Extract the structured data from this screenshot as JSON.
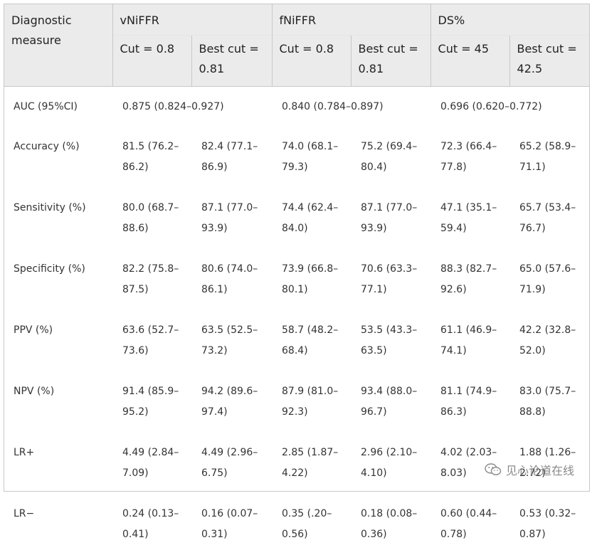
{
  "header": {
    "measure_label_line1": "Diagnostic",
    "measure_label_line2": "measure",
    "groups": [
      {
        "name": "vNiFFR",
        "cut": "Cut = 0.8",
        "best_line1": "Best cut =",
        "best_line2": "0.81"
      },
      {
        "name": "fNiFFR",
        "cut": "Cut = 0.8",
        "best_line1": "Best cut =",
        "best_line2": "0.81"
      },
      {
        "name": "DS%",
        "cut": "Cut = 45",
        "best_line1": "Best cut =",
        "best_line2": "42.5"
      }
    ]
  },
  "auc": {
    "label": "AUC (95%CI)",
    "values": [
      "0.875 (0.824–0.927)",
      "0.840 (0.784–0.897)",
      "0.696 (0.620–0.772)"
    ]
  },
  "rows": [
    {
      "label": "Accuracy (%)",
      "cells": [
        [
          "81.5 (76.2–",
          "86.2)"
        ],
        [
          "82.4 (77.1–",
          "86.9)"
        ],
        [
          "74.0 (68.1–",
          "79.3)"
        ],
        [
          "75.2 (69.4–",
          "80.4)"
        ],
        [
          "72.3 (66.4–",
          "77.8)"
        ],
        [
          "65.2 (58.9–",
          "71.1)"
        ]
      ]
    },
    {
      "label": "Sensitivity (%)",
      "cells": [
        [
          "80.0 (68.7–",
          "88.6)"
        ],
        [
          "87.1 (77.0–",
          "93.9)"
        ],
        [
          "74.4 (62.4–",
          "84.0)"
        ],
        [
          "87.1 (77.0–",
          "93.9)"
        ],
        [
          "47.1 (35.1–",
          "59.4)"
        ],
        [
          "65.7 (53.4–",
          "76.7)"
        ]
      ]
    },
    {
      "label": "Specificity (%)",
      "cells": [
        [
          "82.2 (75.8–",
          "87.5)"
        ],
        [
          "80.6 (74.0–",
          "86.1)"
        ],
        [
          "73.9 (66.8–",
          "80.1)"
        ],
        [
          "70.6 (63.3–",
          "77.1)"
        ],
        [
          "88.3 (82.7–",
          "92.6)"
        ],
        [
          "65.0 (57.6–",
          "71.9)"
        ]
      ]
    },
    {
      "label": "PPV (%)",
      "cells": [
        [
          "63.6 (52.7–",
          "73.6)"
        ],
        [
          "63.5 (52.5–",
          "73.2)"
        ],
        [
          "58.7 (48.2–",
          "68.4)"
        ],
        [
          "53.5 (43.3–",
          "63.5)"
        ],
        [
          "61.1 (46.9–",
          "74.1)"
        ],
        [
          "42.2 (32.8–",
          "52.0)"
        ]
      ]
    },
    {
      "label": "NPV (%)",
      "cells": [
        [
          "91.4 (85.9–",
          "95.2)"
        ],
        [
          "94.2 (89.6–",
          "97.4)"
        ],
        [
          "87.9 (81.0–",
          "92.3)"
        ],
        [
          "93.4 (88.0–",
          "96.7)"
        ],
        [
          "81.1 (74.9–",
          "86.3)"
        ],
        [
          "83.0 (75.7–",
          "88.8)"
        ]
      ]
    },
    {
      "label": "LR+",
      "cells": [
        [
          "4.49 (2.84–",
          "7.09)"
        ],
        [
          "4.49 (2.96–",
          "6.75)"
        ],
        [
          "2.85 (1.87–",
          "4.22)"
        ],
        [
          "2.96 (2.10–",
          "4.10)"
        ],
        [
          "4.02 (2.03–",
          "8.03)"
        ],
        [
          "1.88 (1.26–",
          "2.72)"
        ]
      ]
    },
    {
      "label": "LR−",
      "cells": [
        [
          "0.24 (0.13–",
          "0.41)"
        ],
        [
          "0.16 (0.07–",
          "0.31)"
        ],
        [
          "0.35 (.20–",
          "0.56)"
        ],
        [
          "0.18 (0.08–",
          "0.36)"
        ],
        [
          "0.60 (0.44–",
          "0.78)"
        ],
        [
          "0.53 (0.32–",
          "0.87)"
        ]
      ]
    }
  ],
  "watermark": {
    "text": "见心论道在线",
    "icon": "wechat-icon",
    "color": "#8a8a8a"
  }
}
